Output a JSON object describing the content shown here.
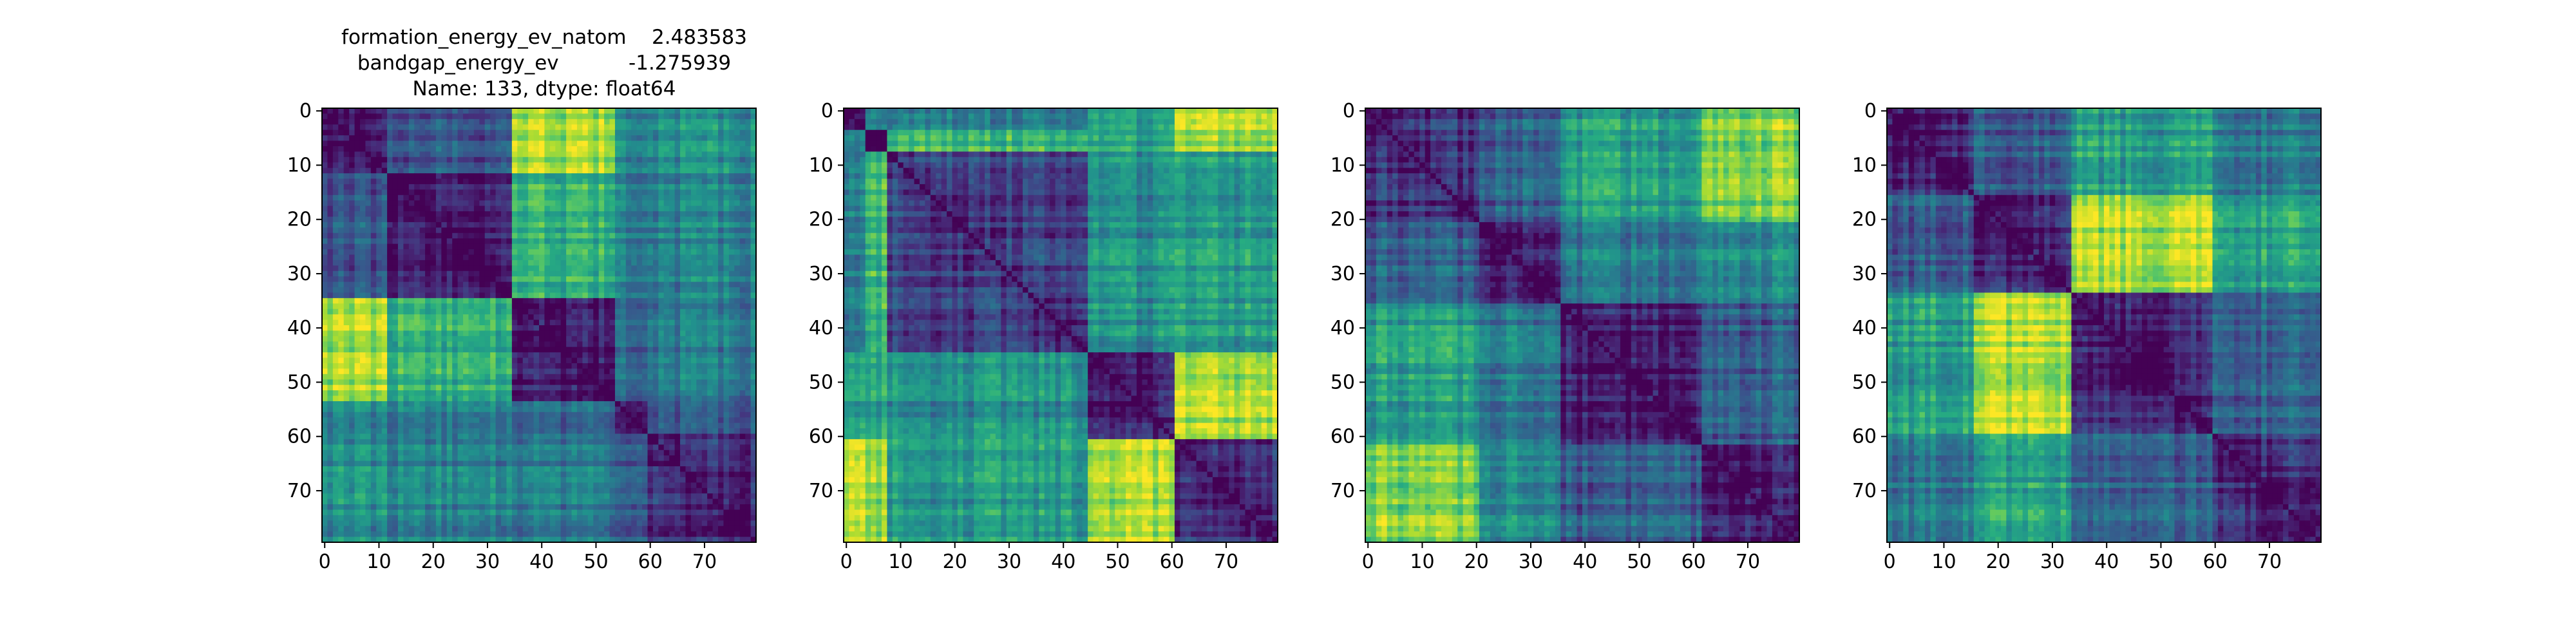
{
  "figure": {
    "title_lines": [
      "formation_energy_ev_natom    2.483583",
      "bandgap_energy_ev           -1.275939",
      "Name: 133, dtype: float64"
    ]
  },
  "chart_data": [
    {
      "type": "heatmap",
      "title": "",
      "xlabel": "",
      "ylabel": "",
      "colormap": "viridis",
      "grid": false,
      "legend": "none",
      "n": 80,
      "blocks": [
        0,
        12,
        35,
        54,
        60,
        80
      ],
      "xticks": [
        0,
        10,
        20,
        30,
        40,
        50,
        60,
        70
      ],
      "yticks": [
        0,
        10,
        20,
        30,
        40,
        50,
        60,
        70
      ],
      "xlim": [
        0,
        80
      ],
      "ylim": [
        80,
        0
      ],
      "block_levels": [
        [
          0.12,
          0.28,
          0.88,
          0.45,
          0.5
        ],
        [
          0.28,
          0.12,
          0.65,
          0.4,
          0.45
        ],
        [
          0.88,
          0.65,
          0.1,
          0.3,
          0.4
        ],
        [
          0.45,
          0.4,
          0.3,
          0.12,
          0.25
        ],
        [
          0.5,
          0.45,
          0.4,
          0.25,
          0.1
        ]
      ]
    },
    {
      "type": "heatmap",
      "title": "",
      "xlabel": "",
      "ylabel": "",
      "colormap": "viridis",
      "grid": false,
      "legend": "none",
      "n": 80,
      "blocks": [
        0,
        4,
        8,
        45,
        61,
        80
      ],
      "xticks": [
        0,
        10,
        20,
        30,
        40,
        50,
        60,
        70
      ],
      "yticks": [
        0,
        10,
        20,
        30,
        40,
        50,
        60,
        70
      ],
      "xlim": [
        0,
        80
      ],
      "ylim": [
        80,
        0
      ],
      "block_levels": [
        [
          0.15,
          0.45,
          0.4,
          0.55,
          0.9
        ],
        [
          0.45,
          0.1,
          0.7,
          0.6,
          0.85
        ],
        [
          0.4,
          0.7,
          0.22,
          0.5,
          0.55
        ],
        [
          0.55,
          0.6,
          0.5,
          0.12,
          0.88
        ],
        [
          0.9,
          0.85,
          0.55,
          0.88,
          0.15
        ]
      ]
    },
    {
      "type": "heatmap",
      "title": "",
      "xlabel": "",
      "ylabel": "",
      "colormap": "viridis",
      "grid": false,
      "legend": "none",
      "n": 80,
      "blocks": [
        0,
        21,
        36,
        62,
        80
      ],
      "xticks": [
        0,
        10,
        20,
        30,
        40,
        50,
        60,
        70
      ],
      "yticks": [
        0,
        10,
        20,
        30,
        40,
        50,
        60,
        70
      ],
      "xlim": [
        0,
        80
      ],
      "ylim": [
        80,
        0
      ],
      "block_levels": [
        [
          0.15,
          0.3,
          0.55,
          0.8
        ],
        [
          0.3,
          0.12,
          0.4,
          0.48
        ],
        [
          0.55,
          0.4,
          0.1,
          0.3
        ],
        [
          0.8,
          0.48,
          0.3,
          0.12
        ]
      ]
    },
    {
      "type": "heatmap",
      "title": "",
      "xlabel": "",
      "ylabel": "",
      "colormap": "viridis",
      "grid": false,
      "legend": "none",
      "n": 80,
      "blocks": [
        0,
        16,
        34,
        60,
        80
      ],
      "xticks": [
        0,
        10,
        20,
        30,
        40,
        50,
        60,
        70
      ],
      "yticks": [
        0,
        10,
        20,
        30,
        40,
        50,
        60,
        70
      ],
      "xlim": [
        0,
        80
      ],
      "ylim": [
        80,
        0
      ],
      "block_levels": [
        [
          0.12,
          0.3,
          0.55,
          0.4
        ],
        [
          0.3,
          0.12,
          0.85,
          0.55
        ],
        [
          0.55,
          0.85,
          0.1,
          0.3
        ],
        [
          0.4,
          0.55,
          0.3,
          0.12
        ]
      ]
    }
  ]
}
